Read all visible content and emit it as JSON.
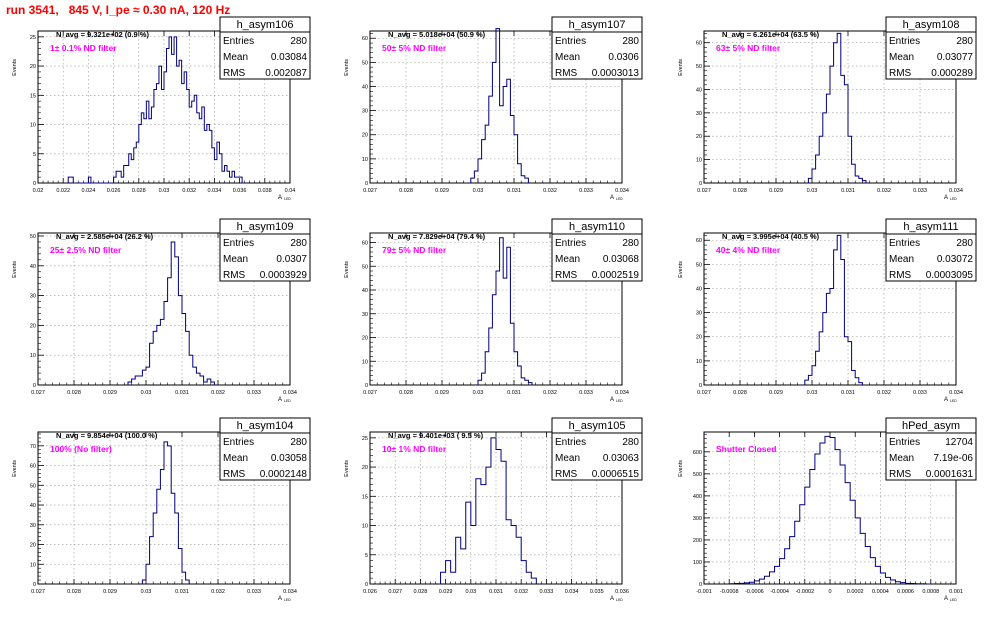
{
  "run_title": "run 3541,   845 V, I_pe ≈ 0.30 nA, 120 Hz",
  "colors": {
    "title": "#ff0000",
    "histogram": "#000080",
    "filter_label": "#ff00ff",
    "grid": "#999999"
  },
  "ylabel": "Events",
  "xlabel": "A",
  "xlabel_sub": "LED",
  "stat_labels": [
    "Entries",
    "Mean",
    "RMS"
  ],
  "chart_data": [
    {
      "type": "bar",
      "name": "h_asym106",
      "entries": "280",
      "mean": "0.03084",
      "rms": "0.002087",
      "navg": "N_avg = 9.321e+02 (0.9 %)",
      "filter": "1± 0.1% ND filter",
      "xlim": [
        0.02,
        0.04
      ],
      "ylim": [
        0,
        26
      ],
      "xticks": [
        "0.02",
        "0.022",
        "0.024",
        "0.026",
        "0.028",
        "0.03",
        "0.032",
        "0.034",
        "0.036",
        "0.038",
        "0.04"
      ],
      "yticks": [
        "0",
        "5",
        "10",
        "15",
        "20",
        "25"
      ],
      "bin_edges": [
        0.0224,
        0.0226,
        0.0228,
        0.023,
        0.0232,
        0.0234,
        0.0236,
        0.0238,
        0.024,
        0.0242,
        0.0244,
        0.0246,
        0.0248,
        0.025,
        0.0252,
        0.0254,
        0.0256,
        0.0258,
        0.026,
        0.0262,
        0.0264,
        0.0266,
        0.0268,
        0.027,
        0.0272,
        0.0274,
        0.0276,
        0.0278,
        0.028,
        0.0282,
        0.0284,
        0.0286,
        0.0288,
        0.029,
        0.0292,
        0.0294,
        0.0296,
        0.0298,
        0.03,
        0.0302,
        0.0304,
        0.0306,
        0.0308,
        0.031,
        0.0312,
        0.0314,
        0.0316,
        0.0318,
        0.032,
        0.0322,
        0.0324,
        0.0326,
        0.0328,
        0.033,
        0.0332,
        0.0334,
        0.0336,
        0.0338,
        0.034,
        0.0342,
        0.0344,
        0.0346,
        0.0348,
        0.035,
        0.0352,
        0.0354,
        0.0356,
        0.0358,
        0.036,
        0.0362,
        0.0364
      ],
      "values": [
        1,
        1,
        0,
        0,
        0,
        0,
        0,
        0,
        1,
        0,
        0,
        0,
        0,
        0,
        0,
        0,
        0,
        0,
        1,
        2,
        2,
        1,
        3,
        3,
        5,
        4,
        6,
        7,
        10,
        12,
        11,
        14,
        11,
        13,
        16,
        17,
        20,
        16,
        19,
        23,
        25,
        22,
        25,
        20,
        21,
        17,
        19,
        16,
        13,
        14,
        15,
        12,
        11,
        13,
        9,
        10,
        9,
        6,
        4,
        7,
        5,
        2,
        3,
        2,
        1,
        2,
        1,
        1,
        1,
        0
      ]
    },
    {
      "type": "bar",
      "name": "h_asym107",
      "entries": "280",
      "mean": "0.0306",
      "rms": "0.0003013",
      "navg": "N_avg = 5.018e+04 (50.9 %)",
      "filter": "50± 5% ND filter",
      "xlim": [
        0.027,
        0.034
      ],
      "ylim": [
        0,
        63
      ],
      "xticks": [
        "0.027",
        "0.028",
        "0.029",
        "0.03",
        "0.031",
        "0.032",
        "0.033",
        "0.034"
      ],
      "yticks": [
        "0",
        "10",
        "20",
        "30",
        "40",
        "50",
        "60"
      ],
      "bin_edges": [
        0.0298,
        0.0299,
        0.03,
        0.0301,
        0.0302,
        0.0303,
        0.0304,
        0.0305,
        0.0306,
        0.0307,
        0.0308,
        0.0309,
        0.031,
        0.0311,
        0.0312,
        0.0313,
        0.0314
      ],
      "values": [
        2,
        5,
        10,
        18,
        24,
        36,
        50,
        64,
        32,
        40,
        43,
        28,
        20,
        8,
        3,
        2
      ]
    },
    {
      "type": "bar",
      "name": "h_asym108",
      "entries": "280",
      "mean": "0.03077",
      "rms": "0.000289",
      "navg": "N_avg = 6.261e+04 (63.5 %)",
      "filter": "63± 5% ND filter",
      "xlim": [
        0.027,
        0.034
      ],
      "ylim": [
        0,
        65
      ],
      "xticks": [
        "0.027",
        "0.028",
        "0.029",
        "0.03",
        "0.031",
        "0.032",
        "0.033",
        "0.034"
      ],
      "yticks": [
        "0",
        "10",
        "20",
        "30",
        "40",
        "50",
        "60"
      ],
      "bin_edges": [
        0.0299,
        0.03,
        0.0301,
        0.0302,
        0.0303,
        0.0304,
        0.0305,
        0.0306,
        0.0307,
        0.0308,
        0.0309,
        0.031,
        0.0311,
        0.0312,
        0.0313,
        0.0314,
        0.0315
      ],
      "values": [
        2,
        6,
        12,
        20,
        30,
        38,
        50,
        60,
        64,
        46,
        42,
        20,
        8,
        3,
        2,
        1
      ]
    },
    {
      "type": "bar",
      "name": "h_asym109",
      "entries": "280",
      "mean": "0.0307",
      "rms": "0.0003929",
      "navg": "N_avg = 2.585e+04 (26.2 %)",
      "filter": "25± 2.5% ND filter",
      "xlim": [
        0.027,
        0.034
      ],
      "ylim": [
        0,
        51
      ],
      "xticks": [
        "0.027",
        "0.028",
        "0.029",
        "0.03",
        "0.031",
        "0.032",
        "0.033",
        "0.034"
      ],
      "yticks": [
        "0",
        "10",
        "20",
        "30",
        "40",
        "50"
      ],
      "bin_edges": [
        0.0295,
        0.0296,
        0.0297,
        0.0298,
        0.0299,
        0.03,
        0.0301,
        0.0302,
        0.0303,
        0.0304,
        0.0305,
        0.0306,
        0.0307,
        0.0308,
        0.0309,
        0.031,
        0.0311,
        0.0312,
        0.0313,
        0.0314,
        0.0315,
        0.0316,
        0.0317,
        0.0318,
        0.0319
      ],
      "values": [
        1,
        2,
        3,
        3,
        5,
        6,
        14,
        18,
        20,
        22,
        28,
        36,
        48,
        43,
        30,
        24,
        18,
        10,
        6,
        4,
        3,
        1,
        2,
        1
      ]
    },
    {
      "type": "bar",
      "name": "h_asym110",
      "entries": "280",
      "mean": "0.03068",
      "rms": "0.0002519",
      "navg": "N_avg = 7.829e+04 (79.4 %)",
      "filter": "79± 5% ND filter",
      "xlim": [
        0.027,
        0.034
      ],
      "ylim": [
        0,
        64
      ],
      "xticks": [
        "0.027",
        "0.028",
        "0.029",
        "0.03",
        "0.031",
        "0.032",
        "0.033",
        "0.034"
      ],
      "yticks": [
        "0",
        "10",
        "20",
        "30",
        "40",
        "50",
        "60"
      ],
      "bin_edges": [
        0.03,
        0.0301,
        0.0302,
        0.0303,
        0.0304,
        0.0305,
        0.0306,
        0.0307,
        0.0308,
        0.0309,
        0.031,
        0.0311,
        0.0312,
        0.0313,
        0.0314,
        0.0315
      ],
      "values": [
        2,
        5,
        14,
        24,
        38,
        48,
        62,
        45,
        58,
        26,
        14,
        8,
        3,
        2,
        1
      ]
    },
    {
      "type": "bar",
      "name": "h_asym111",
      "entries": "280",
      "mean": "0.03072",
      "rms": "0.0003095",
      "navg": "N_avg = 3.995e+04 (40.5 %)",
      "filter": "40± 4% ND filter",
      "xlim": [
        0.027,
        0.034
      ],
      "ylim": [
        0,
        63
      ],
      "xticks": [
        "0.027",
        "0.028",
        "0.029",
        "0.03",
        "0.031",
        "0.032",
        "0.033",
        "0.034"
      ],
      "yticks": [
        "0",
        "10",
        "20",
        "30",
        "40",
        "50",
        "60"
      ],
      "bin_edges": [
        0.0298,
        0.0299,
        0.03,
        0.0301,
        0.0302,
        0.0303,
        0.0304,
        0.0305,
        0.0306,
        0.0307,
        0.0308,
        0.0309,
        0.031,
        0.0311,
        0.0312,
        0.0313,
        0.0314
      ],
      "values": [
        2,
        4,
        8,
        14,
        22,
        30,
        38,
        40,
        56,
        62,
        52,
        20,
        18,
        6,
        3,
        1
      ]
    },
    {
      "type": "bar",
      "name": "h_asym104",
      "entries": "280",
      "mean": "0.03058",
      "rms": "0.0002148",
      "navg": "N_avg = 9.854e+04 (100.0 %)",
      "filter": "100% (No filter)",
      "xlim": [
        0.027,
        0.034
      ],
      "ylim": [
        0,
        77
      ],
      "xticks": [
        "0.027",
        "0.028",
        "0.029",
        "0.03",
        "0.031",
        "0.032",
        "0.033",
        "0.034"
      ],
      "yticks": [
        "0",
        "10",
        "20",
        "30",
        "40",
        "50",
        "60",
        "70"
      ],
      "bin_edges": [
        0.0299,
        0.03,
        0.0301,
        0.0302,
        0.0303,
        0.0304,
        0.0305,
        0.0306,
        0.0307,
        0.0308,
        0.0309,
        0.031,
        0.0311,
        0.0312
      ],
      "values": [
        2,
        10,
        24,
        36,
        48,
        58,
        72,
        70,
        46,
        36,
        18,
        6,
        2
      ]
    },
    {
      "type": "bar",
      "name": "h_asym105",
      "entries": "280",
      "mean": "0.03063",
      "rms": "0.0006515",
      "navg": "N_avg = 9.401e+03 ( 9.5 %)",
      "filter": "10± 1% ND filter",
      "xlim": [
        0.026,
        0.036
      ],
      "ylim": [
        0,
        26
      ],
      "xticks": [
        "0.026",
        "0.027",
        "0.028",
        "0.029",
        "0.03",
        "0.031",
        "0.032",
        "0.033",
        "0.034",
        "0.035",
        "0.036"
      ],
      "yticks": [
        "0",
        "5",
        "10",
        "15",
        "20",
        "25"
      ],
      "bin_edges": [
        0.0288,
        0.029,
        0.0292,
        0.0294,
        0.0296,
        0.0298,
        0.03,
        0.0302,
        0.0304,
        0.0306,
        0.0308,
        0.031,
        0.0312,
        0.0314,
        0.0316,
        0.0318,
        0.032,
        0.0322,
        0.0324,
        0.0326
      ],
      "values": [
        2,
        4,
        2,
        8,
        6,
        14,
        10,
        18,
        17,
        20,
        25,
        23,
        21,
        11,
        10,
        8,
        4,
        2,
        1
      ]
    },
    {
      "type": "bar",
      "name": "hPed_asym",
      "entries": "12704",
      "mean": "7.19e-06",
      "rms": "0.0001631",
      "navg": "",
      "filter": "Shutter Closed",
      "xlim": [
        -0.001,
        0.001
      ],
      "ylim": [
        0,
        690
      ],
      "xticks": [
        "-0.001",
        "-0.0008",
        "-0.0006",
        "-0.0004",
        "-0.0002",
        "0",
        "0.0002",
        "0.0004",
        "0.0006",
        "0.0008",
        "0.001"
      ],
      "yticks": [
        "0",
        "100",
        "200",
        "300",
        "400",
        "500",
        "600"
      ],
      "bin_edges": [
        -0.0008,
        -0.00076,
        -0.00072,
        -0.00068,
        -0.00064,
        -0.0006,
        -0.00056,
        -0.00052,
        -0.00048,
        -0.00044,
        -0.0004,
        -0.00036,
        -0.00032,
        -0.00028,
        -0.00024,
        -0.0002,
        -0.00016,
        -0.00012,
        -8e-05,
        -4e-05,
        0,
        4e-05,
        8e-05,
        0.00012,
        0.00016,
        0.0002,
        0.00024,
        0.00028,
        0.00032,
        0.00036,
        0.0004,
        0.00044,
        0.00048,
        0.00052,
        0.00056,
        0.0006,
        0.00064,
        0.00068,
        0.00072,
        0.00076,
        0.0008
      ],
      "values": [
        1,
        2,
        3,
        5,
        8,
        14,
        22,
        35,
        55,
        80,
        115,
        160,
        215,
        285,
        360,
        440,
        520,
        590,
        640,
        670,
        665,
        610,
        540,
        460,
        380,
        300,
        230,
        170,
        120,
        80,
        50,
        30,
        18,
        10,
        6,
        3,
        2,
        1,
        1,
        0
      ]
    }
  ]
}
